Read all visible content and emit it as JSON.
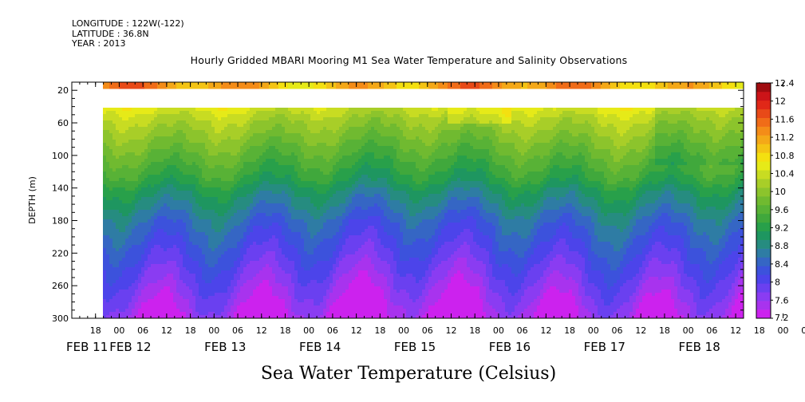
{
  "header": {
    "longitude": "LONGITUDE : 122W(-122)",
    "latitude": "LATITUDE : 36.8N",
    "year": "YEAR : 2013"
  },
  "chart_data": {
    "type": "heatmap",
    "title": "Hourly Gridded MBARI Mooring M1 Sea Water Temperature and Salinity Observations",
    "xlabel": "Sea Water Temperature (Celsius)",
    "ylabel": "DEPTH (m)",
    "y_axis": {
      "ticks": [
        20,
        60,
        100,
        140,
        180,
        220,
        260,
        300
      ],
      "range": [
        10,
        300
      ],
      "inverted": true
    },
    "x_axis": {
      "hour_ticks": [
        "18",
        "00",
        "06",
        "12",
        "18",
        "00",
        "06",
        "12",
        "18",
        "00",
        "06",
        "12",
        "18",
        "00",
        "06",
        "12",
        "18",
        "00",
        "06",
        "12",
        "18",
        "00",
        "06",
        "12",
        "18",
        "00",
        "06",
        "12",
        "18",
        "00",
        "06",
        "12"
      ],
      "day_labels": [
        "FEB 11",
        "FEB 12",
        "FEB 13",
        "FEB 14",
        "FEB 15",
        "FEB 16",
        "FEB 17",
        "FEB 18"
      ],
      "range": [
        "2013-02-11 12:00",
        "2013-02-18 14:00"
      ],
      "data_start": "2013-02-11 20:00"
    },
    "colorbar": {
      "labels": [
        "12.4",
        "12",
        "11.6",
        "11.2",
        "10.8",
        "10.4",
        "10",
        "9.6",
        "9.2",
        "8.8",
        "8.4",
        "8",
        "7.6",
        "7.2"
      ],
      "levels": [
        7.2,
        7.4,
        7.6,
        7.8,
        8.0,
        8.2,
        8.4,
        8.6,
        8.8,
        9.0,
        9.2,
        9.4,
        9.6,
        9.8,
        10.0,
        10.2,
        10.4,
        10.6,
        10.8,
        11.0,
        11.2,
        11.4,
        11.6,
        11.8,
        12.0,
        12.2,
        12.4
      ],
      "colors": [
        "#cc22ee",
        "#a833ee",
        "#8a3cf2",
        "#6a40f0",
        "#4c44ea",
        "#3c52dc",
        "#3566c4",
        "#2e7ca4",
        "#268c80",
        "#1e9660",
        "#28a04a",
        "#40a83c",
        "#58b236",
        "#70ba30",
        "#8cc42c",
        "#a8ce28",
        "#c8dc22",
        "#e6ea18",
        "#f4e010",
        "#f4c414",
        "#f4a818",
        "#f48c18",
        "#f06c18",
        "#e84a18",
        "#e02818",
        "#cc1418",
        "#a00c10"
      ]
    },
    "temperature_profile": {
      "depth_m": [
        10,
        40,
        55,
        70,
        85,
        100,
        115,
        130,
        145,
        160,
        180,
        200,
        220,
        240,
        260,
        280,
        300
      ],
      "temp_c": [
        11.4,
        10.6,
        10.3,
        10.1,
        9.9,
        9.7,
        9.5,
        9.3,
        9.0,
        8.8,
        8.5,
        8.3,
        8.1,
        7.9,
        7.7,
        7.5,
        7.3
      ]
    },
    "missing_depth_band_m": [
      19,
      40
    ],
    "grid": false
  }
}
